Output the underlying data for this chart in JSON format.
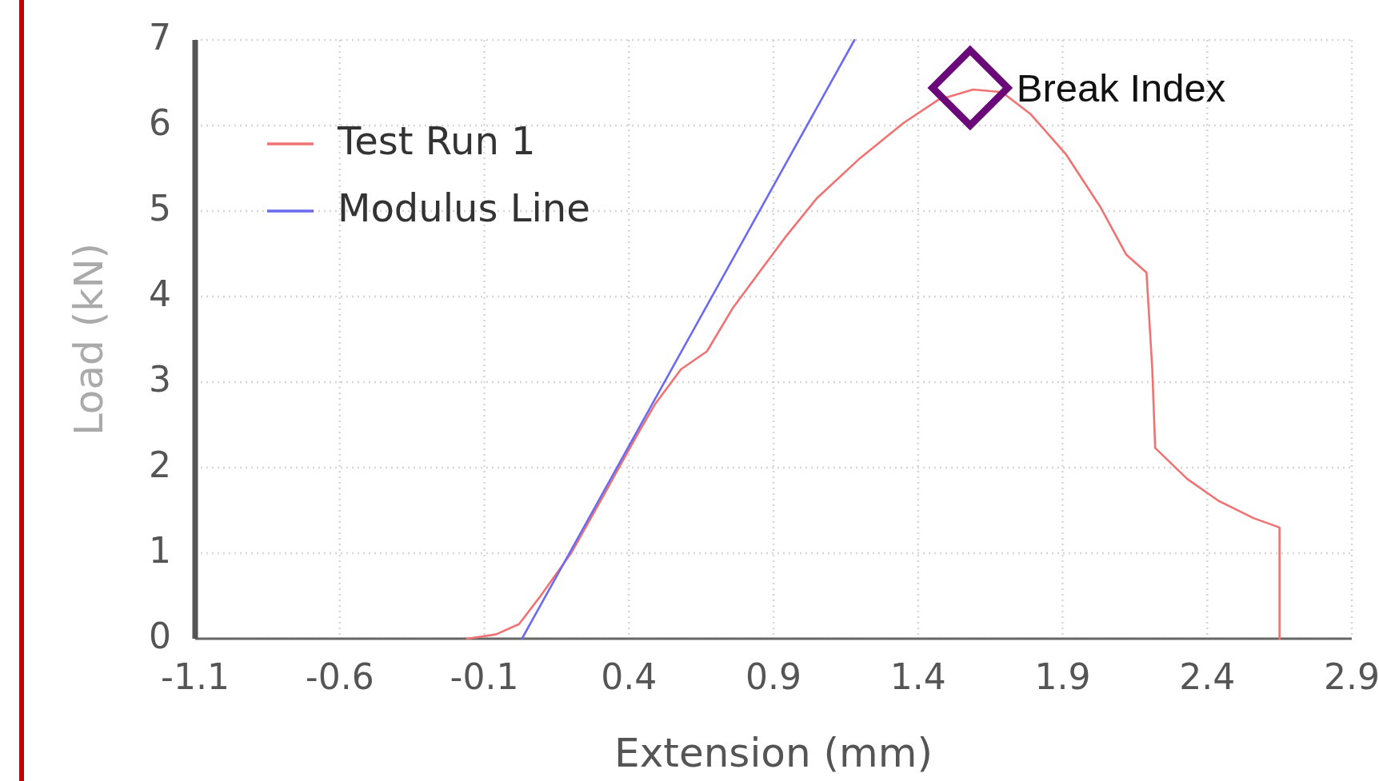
{
  "chart_data": {
    "type": "line",
    "xlabel": "Extension (mm)",
    "ylabel": "Load (kN)",
    "xlim": [
      -1.1,
      2.9
    ],
    "xticks": [
      -1.1,
      -0.6,
      -0.1,
      0.4,
      0.9,
      1.4,
      1.9,
      2.4,
      2.9
    ],
    "ylim": [
      0,
      7
    ],
    "yticks": [
      0,
      1,
      2,
      3,
      4,
      5,
      6,
      7
    ],
    "grid": true,
    "legend": "top left",
    "series": [
      {
        "name": "Test Run 1",
        "color": "#f07272",
        "x": [
          -0.16,
          -0.06,
          0.02,
          0.09,
          0.2,
          0.31,
          0.42,
          0.49,
          0.58,
          0.67,
          0.76,
          0.85,
          0.94,
          1.05,
          1.2,
          1.35,
          1.47,
          1.59,
          1.69,
          1.79,
          1.91,
          2.03,
          2.12,
          2.19,
          2.21,
          2.22,
          2.33,
          2.44,
          2.56,
          2.65,
          2.65
        ],
        "values": [
          0,
          0.05,
          0.17,
          0.48,
          1.0,
          1.66,
          2.33,
          2.74,
          3.15,
          3.36,
          3.87,
          4.28,
          4.69,
          5.15,
          5.62,
          6.03,
          6.3,
          6.42,
          6.39,
          6.13,
          5.67,
          5.05,
          4.49,
          4.28,
          3.15,
          2.23,
          1.87,
          1.61,
          1.41,
          1.3,
          0
        ]
      },
      {
        "name": "Modulus Line",
        "color": "#6b6bf0",
        "x": [
          0.03,
          1.18
        ],
        "values": [
          0,
          7
        ]
      },
      {
        "name": "Break Index",
        "type": "scatter",
        "color": "#6a0a78",
        "marker": "diamond",
        "x": [
          1.58
        ],
        "values": [
          6.44
        ]
      }
    ]
  }
}
